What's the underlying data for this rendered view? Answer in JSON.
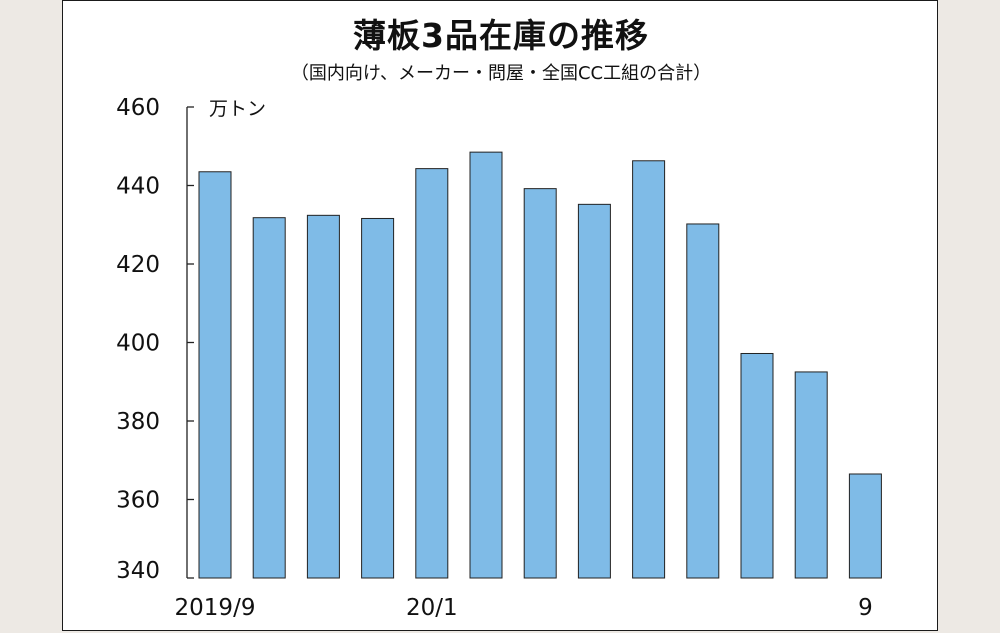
{
  "chart_data": {
    "type": "bar",
    "title": "薄板3品在庫の推移",
    "subtitle": "（国内向け、メーカー・問屋・全国CC工組の合計）",
    "unit": "万トン",
    "ylim": [
      340,
      460
    ],
    "yticks": [
      460,
      440,
      420,
      400,
      380,
      360,
      340
    ],
    "grid": false,
    "bar_color": "#7fbbe7",
    "categories": [
      "2019/9",
      "",
      "",
      "",
      "20/1",
      "",
      "",
      "",
      "",
      "",
      "",
      "",
      "9"
    ],
    "values": [
      443.5,
      431.8,
      432.4,
      431.6,
      444.3,
      448.5,
      439.2,
      435.2,
      446.3,
      430.2,
      397.2,
      392.5,
      366.5
    ]
  }
}
